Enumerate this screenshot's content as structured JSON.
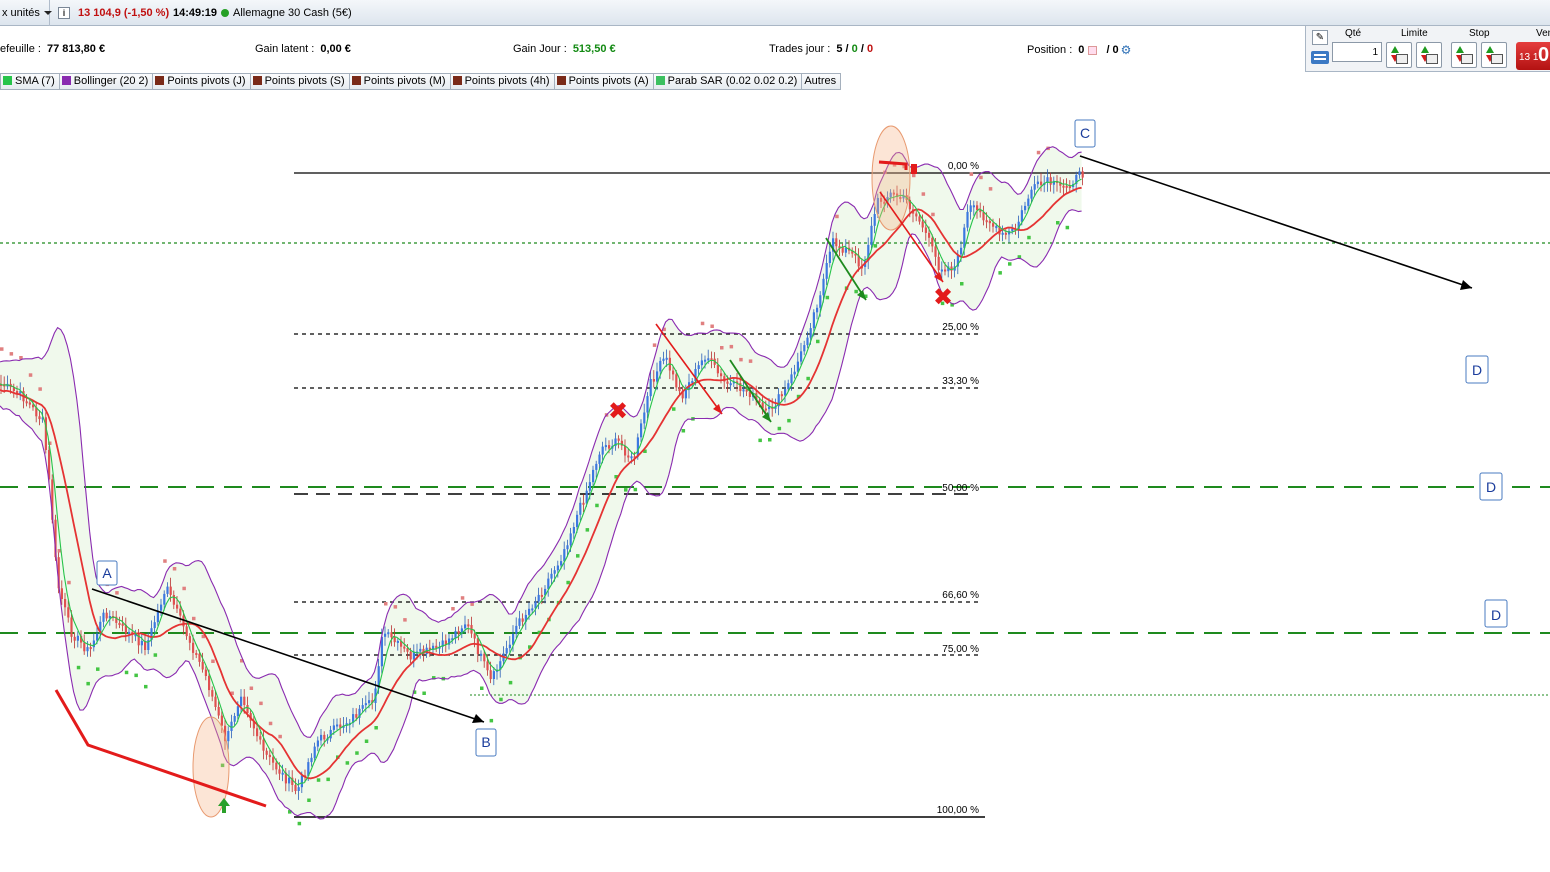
{
  "header": {
    "units_label": "x unités",
    "info_icon": "i",
    "quote_change": "13 104,9 (-1,50 %)",
    "quote_time": "14:49:19",
    "instrument_name": "Allemagne 30 Cash (5€)",
    "status_color": "#25a025"
  },
  "account": {
    "portfolio_label": "efeuille :",
    "portfolio_value": "77 813,80 €",
    "latent_label": "Gain latent :",
    "latent_value": "0,00 €",
    "day_label": "Gain Jour :",
    "day_value": "513,50 €",
    "trades_label": "Trades jour :",
    "trades_total": "5",
    "trades_sep1": " / ",
    "trades_won": "0",
    "trades_sep2": " / ",
    "trades_lost": "0",
    "position_label": "Position :",
    "position_value": "0",
    "position_sep": "/ 0"
  },
  "order_panel": {
    "qty_label": "Qté",
    "qty_value": "1",
    "limit_label": "Limite",
    "stop_label": "Stop",
    "sell_label": "Ven",
    "sell_price_small": "13 1",
    "sell_price_big": "0"
  },
  "indicators": [
    {
      "label": "SMA (7)",
      "color": "#27c44a"
    },
    {
      "label": "Bollinger (20 2)",
      "color": "#8a2bb0"
    },
    {
      "label": "Points pivots (J)",
      "color": "#7a2a18"
    },
    {
      "label": "Points pivots (S)",
      "color": "#7a2a18"
    },
    {
      "label": "Points pivots (M)",
      "color": "#7a2a18"
    },
    {
      "label": "Points pivots (4h)",
      "color": "#7a2a18"
    },
    {
      "label": "Points pivots (A)",
      "color": "#7a2a18"
    },
    {
      "label": "Parab SAR (0.02 0.02 0.2)",
      "color": "#3cc060"
    }
  ],
  "others_label": "Autres",
  "fibonacci": [
    {
      "label": "0,00 %"
    },
    {
      "label": "25,00 %"
    },
    {
      "label": "33,30 %"
    },
    {
      "label": "50,00 %"
    },
    {
      "label": "66,60 %"
    },
    {
      "label": "75,00 %"
    },
    {
      "label": "100,00 %"
    }
  ],
  "wave_labels": {
    "a": "A",
    "b": "B",
    "c": "C",
    "d": "D"
  },
  "colors": {
    "bull": "#3c78e0",
    "bear": "#e05050",
    "sma": "#27c44a",
    "bollinger": "#8a2bb0",
    "sar_up": "#44c544",
    "sar_down": "#e08080",
    "ma_red": "#e53333",
    "pivot_green": "#1e8a1e"
  }
}
